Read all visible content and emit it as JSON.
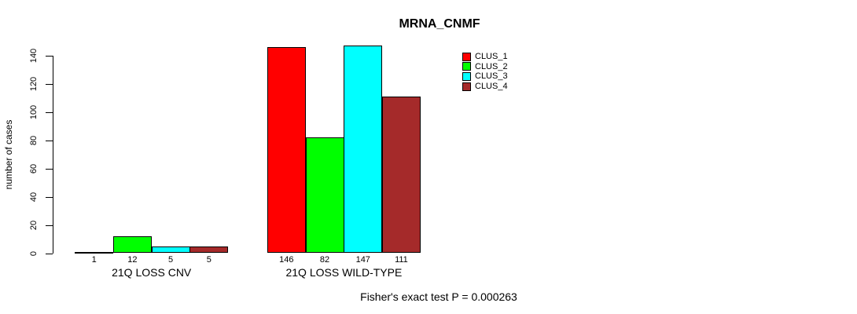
{
  "chart_data": {
    "type": "bar",
    "title": "MRNA_CNMF",
    "ylabel": "number of cases",
    "ylim": [
      0,
      140
    ],
    "yticks": [
      0,
      20,
      40,
      60,
      80,
      100,
      120,
      140
    ],
    "grid": false,
    "legend_position": "right-outside",
    "categories": [
      "21Q LOSS CNV",
      "21Q LOSS WILD-TYPE"
    ],
    "series": [
      {
        "name": "CLUS_1",
        "color": "#ff0000",
        "values": [
          1,
          146
        ]
      },
      {
        "name": "CLUS_2",
        "color": "#00ff00",
        "values": [
          12,
          82
        ]
      },
      {
        "name": "CLUS_3",
        "color": "#00ffff",
        "values": [
          5,
          147
        ]
      },
      {
        "name": "CLUS_4",
        "color": "#a52a2a",
        "values": [
          5,
          111
        ]
      }
    ],
    "bar_value_labels": [
      [
        "1",
        "12",
        "5",
        "5"
      ],
      [
        "146",
        "82",
        "147",
        "111"
      ]
    ],
    "annotation": "Fisher's exact test P = 0.000263"
  }
}
